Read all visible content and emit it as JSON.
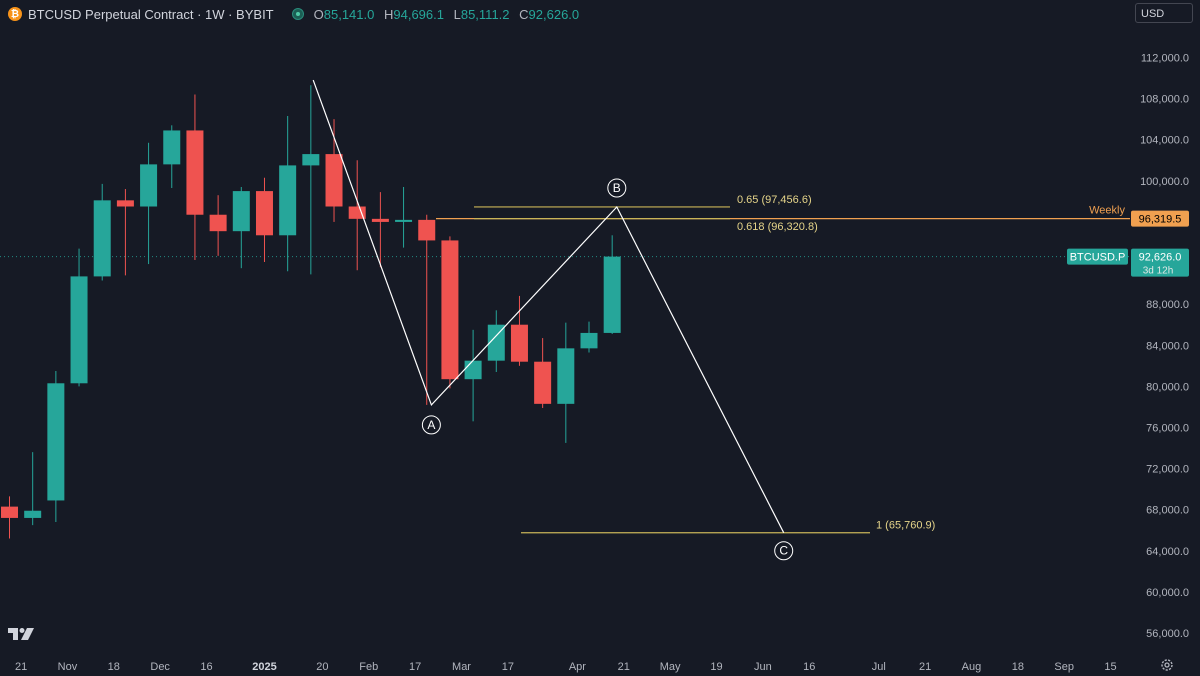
{
  "header": {
    "symbol_title": "BTCUSD Perpetual Contract · 1W · BYBIT",
    "coin_glyph": "₿",
    "ohlc": {
      "o_label": "O",
      "o": "85,141.0",
      "h_label": "H",
      "h": "94,696.1",
      "l_label": "L",
      "l": "85,111.2",
      "c_label": "C",
      "c": "92,626.0"
    }
  },
  "currency_selector": "USD",
  "colors": {
    "up": "#26a69a",
    "down": "#ef5350",
    "fib": "#c9b458",
    "weekly": "#f0a050",
    "background": "#161a25"
  },
  "chart_data": {
    "type": "candlestick",
    "y_axis": {
      "min": 54000,
      "max": 114000,
      "ticks": [
        112000,
        108000,
        104000,
        100000,
        96000,
        88000,
        84000,
        80000,
        76000,
        72000,
        68000,
        64000,
        60000,
        56000
      ],
      "tick_labels": [
        "112,000.0",
        "108,000.0",
        "104,000.0",
        "100,000.0",
        "",
        "88,000.0",
        "84,000.0",
        "80,000.0",
        "76,000.0",
        "72,000.0",
        "68,000.0",
        "64,000.0",
        "60,000.0",
        "56,000.0"
      ]
    },
    "x_axis": {
      "labels": [
        "21",
        "Nov",
        "18",
        "Dec",
        "16",
        "2025",
        "20",
        "Feb",
        "17",
        "Mar",
        "17",
        "Apr",
        "21",
        "May",
        "19",
        "Jun",
        "16",
        "Jul",
        "21",
        "Aug",
        "18",
        "Sep",
        "15"
      ],
      "label_weeks": [
        0.5,
        2.5,
        4.5,
        6.5,
        8.5,
        11,
        13.5,
        15.5,
        17.5,
        19.5,
        21.5,
        24.5,
        26.5,
        28.5,
        30.5,
        32.5,
        34.5,
        37.5,
        39.5,
        41.5,
        43.5,
        45.5,
        47.5
      ],
      "bold_labels": [
        "2025"
      ]
    },
    "candles": [
      {
        "o": 68300,
        "h": 69300,
        "l": 65200,
        "c": 67200
      },
      {
        "o": 67200,
        "h": 73600,
        "l": 66500,
        "c": 67900
      },
      {
        "o": 68900,
        "h": 81500,
        "l": 66800,
        "c": 80300
      },
      {
        "o": 80300,
        "h": 93400,
        "l": 80000,
        "c": 90700
      },
      {
        "o": 90700,
        "h": 99700,
        "l": 90300,
        "c": 98100
      },
      {
        "o": 98100,
        "h": 99200,
        "l": 90800,
        "c": 97500
      },
      {
        "o": 97500,
        "h": 103700,
        "l": 91900,
        "c": 101600
      },
      {
        "o": 101600,
        "h": 105400,
        "l": 99300,
        "c": 104900
      },
      {
        "o": 104900,
        "h": 108400,
        "l": 92300,
        "c": 96700
      },
      {
        "o": 96700,
        "h": 98600,
        "l": 92700,
        "c": 95100
      },
      {
        "o": 95100,
        "h": 99400,
        "l": 91500,
        "c": 99000
      },
      {
        "o": 99000,
        "h": 100300,
        "l": 92100,
        "c": 94700
      },
      {
        "o": 94700,
        "h": 106300,
        "l": 91200,
        "c": 101500
      },
      {
        "o": 101500,
        "h": 109300,
        "l": 90900,
        "c": 102600
      },
      {
        "o": 102600,
        "h": 106000,
        "l": 96000,
        "c": 97500
      },
      {
        "o": 97500,
        "h": 102000,
        "l": 91300,
        "c": 96300
      },
      {
        "o": 96300,
        "h": 98900,
        "l": 91600,
        "c": 96000
      },
      {
        "o": 96000,
        "h": 99400,
        "l": 93500,
        "c": 96200
      },
      {
        "o": 96200,
        "h": 96700,
        "l": 78200,
        "c": 94200
      },
      {
        "o": 94200,
        "h": 94600,
        "l": 79800,
        "c": 80700
      },
      {
        "o": 80700,
        "h": 85500,
        "l": 76600,
        "c": 82500
      },
      {
        "o": 82500,
        "h": 87400,
        "l": 81400,
        "c": 86000
      },
      {
        "o": 86000,
        "h": 88800,
        "l": 82000,
        "c": 82400
      },
      {
        "o": 82400,
        "h": 84700,
        "l": 77900,
        "c": 78300
      },
      {
        "o": 78300,
        "h": 86200,
        "l": 74500,
        "c": 83700
      },
      {
        "o": 83700,
        "h": 86300,
        "l": 83300,
        "c": 85200
      },
      {
        "o": 85200,
        "h": 94700,
        "l": 85100,
        "c": 92626
      }
    ],
    "fib_levels": [
      {
        "label": "0.65 (97,456.6)",
        "value": 97456.6
      },
      {
        "label": "0.618 (96,320.8)",
        "value": 96320.8
      },
      {
        "label": "1 (65,760.9)",
        "value": 65760.9
      }
    ],
    "abc_pattern": {
      "points": [
        {
          "week": 13.1,
          "value": 109800,
          "label": ""
        },
        {
          "week": 18.2,
          "value": 78200,
          "label": "A"
        },
        {
          "week": 26.2,
          "value": 97450,
          "label": "B"
        },
        {
          "week": 33.4,
          "value": 65760,
          "label": "C"
        }
      ]
    },
    "weekly_level": {
      "name": "Weekly",
      "value": 96319.5,
      "label": "96,319.5"
    },
    "last_price": {
      "symbol": "BTCUSD.P",
      "value": 92626,
      "label": "92,626.0",
      "countdown": "3d 12h"
    }
  }
}
